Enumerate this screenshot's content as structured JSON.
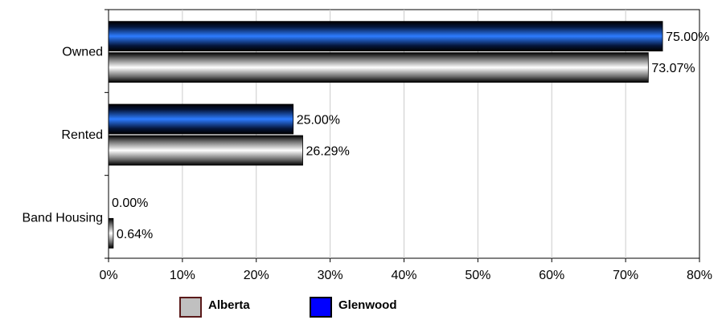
{
  "chart_data": {
    "type": "bar",
    "orientation": "horizontal",
    "categories": [
      "Owned",
      "Rented",
      "Band Housing"
    ],
    "series": [
      {
        "name": "Glenwood",
        "values": [
          75.0,
          25.0,
          0.0
        ],
        "labels": [
          "75.00%",
          "25.00%",
          "0.00%"
        ],
        "color": "#1e66e6"
      },
      {
        "name": "Alberta",
        "values": [
          73.07,
          26.29,
          0.64
        ],
        "labels": [
          "73.07%",
          "26.29%",
          "0.64%"
        ],
        "color": "#c0c0c0"
      }
    ],
    "xlim": [
      0,
      80
    ],
    "xticks": [
      "0%",
      "10%",
      "20%",
      "30%",
      "40%",
      "50%",
      "60%",
      "70%",
      "80%"
    ],
    "grid": true,
    "legend_position": "bottom"
  },
  "legend": {
    "items": [
      {
        "label": "Alberta",
        "color": "#c0c0c0",
        "border": "#5a1a1a"
      },
      {
        "label": "Glenwood",
        "color": "#0000ff",
        "border": "#000000"
      }
    ]
  }
}
